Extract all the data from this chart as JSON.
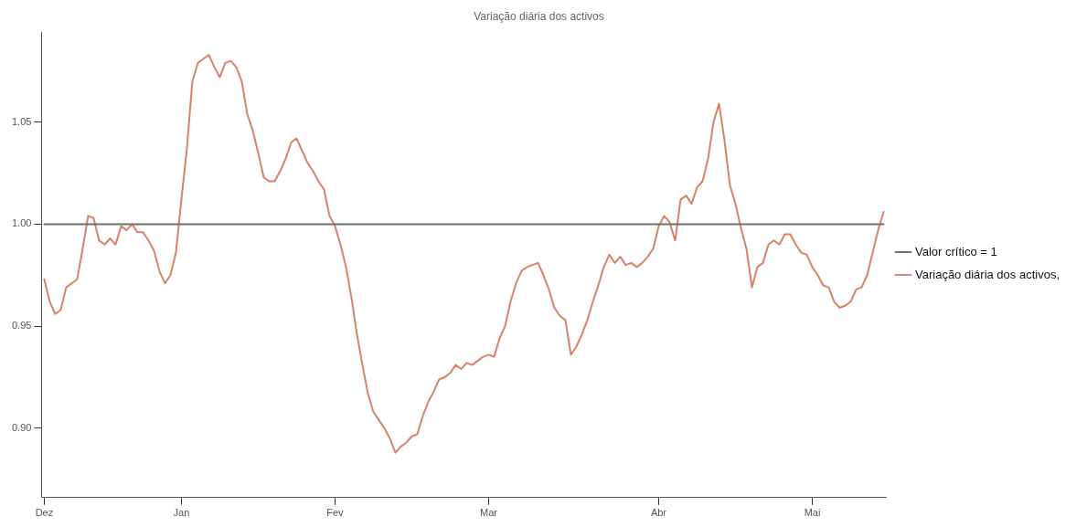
{
  "chart_data": {
    "type": "line",
    "title": "Variação diária dos activos",
    "categories": [
      "Dez",
      null,
      null,
      null,
      null,
      null,
      null,
      null,
      null,
      null,
      null,
      null,
      null,
      null,
      null,
      null,
      null,
      null,
      null,
      null,
      null,
      null,
      null,
      null,
      null,
      "Jan",
      null,
      null,
      null,
      null,
      null,
      null,
      null,
      null,
      null,
      null,
      null,
      null,
      null,
      null,
      null,
      null,
      null,
      null,
      null,
      null,
      null,
      null,
      null,
      null,
      null,
      null,
      null,
      "Fev",
      null,
      null,
      null,
      null,
      null,
      null,
      null,
      null,
      null,
      null,
      null,
      null,
      null,
      null,
      null,
      null,
      null,
      null,
      null,
      null,
      null,
      null,
      null,
      null,
      null,
      null,
      null,
      "Mar",
      null,
      null,
      null,
      null,
      null,
      null,
      null,
      null,
      null,
      null,
      null,
      null,
      null,
      null,
      null,
      null,
      null,
      null,
      null,
      null,
      null,
      null,
      null,
      null,
      null,
      null,
      null,
      null,
      null,
      null,
      "Abr",
      null,
      null,
      null,
      null,
      null,
      null,
      null,
      null,
      null,
      null,
      null,
      null,
      null,
      null,
      null,
      null,
      null,
      null,
      null,
      null,
      null,
      null,
      null,
      null,
      null,
      null,
      null,
      "Mai",
      null,
      null,
      null,
      null,
      null,
      null,
      null,
      null,
      null,
      null,
      null,
      null,
      null
    ],
    "ylim": [
      0.866,
      1.094
    ],
    "yticks": [
      {
        "value": 0.9,
        "label": "0.90"
      },
      {
        "value": 0.95,
        "label": "0.95"
      },
      {
        "value": 1,
        "label": "1.00"
      },
      {
        "value": 1.05,
        "label": "1.05"
      }
    ],
    "grid": false,
    "legend": "right",
    "marker": "none",
    "line_style": "solid",
    "series": [
      {
        "name": "Valor crítico = 1",
        "color": "#6e6e6e",
        "values": [
          1,
          1,
          1,
          1,
          1,
          1,
          1,
          1,
          1,
          1,
          1,
          1,
          1,
          1,
          1,
          1,
          1,
          1,
          1,
          1,
          1,
          1,
          1,
          1,
          1,
          1,
          1,
          1,
          1,
          1,
          1,
          1,
          1,
          1,
          1,
          1,
          1,
          1,
          1,
          1,
          1,
          1,
          1,
          1,
          1,
          1,
          1,
          1,
          1,
          1,
          1,
          1,
          1,
          1,
          1,
          1,
          1,
          1,
          1,
          1,
          1,
          1,
          1,
          1,
          1,
          1,
          1,
          1,
          1,
          1,
          1,
          1,
          1,
          1,
          1,
          1,
          1,
          1,
          1,
          1,
          1,
          1,
          1,
          1,
          1,
          1,
          1,
          1,
          1,
          1,
          1,
          1,
          1,
          1,
          1,
          1,
          1,
          1,
          1,
          1,
          1,
          1,
          1,
          1,
          1,
          1,
          1,
          1,
          1,
          1,
          1,
          1,
          1,
          1,
          1,
          1,
          1,
          1,
          1,
          1,
          1,
          1,
          1,
          1,
          1,
          1,
          1,
          1,
          1,
          1,
          1,
          1,
          1,
          1,
          1,
          1,
          1,
          1,
          1,
          1,
          1,
          1,
          1,
          1,
          1,
          1,
          1,
          1,
          1,
          1,
          1,
          1,
          1,
          1
        ]
      },
      {
        "name": "Variação diária dos activos,",
        "color": "#d9826a",
        "values": [
          0.973,
          0.962,
          0.956,
          0.958,
          0.969,
          0.971,
          0.973,
          0.988,
          1.004,
          1.003,
          0.992,
          0.99,
          0.993,
          0.99,
          0.999,
          0.997,
          1.0,
          0.996,
          0.996,
          0.992,
          0.987,
          0.977,
          0.971,
          0.975,
          0.986,
          1.012,
          1.037,
          1.07,
          1.079,
          1.081,
          1.083,
          1.077,
          1.072,
          1.079,
          1.08,
          1.077,
          1.07,
          1.054,
          1.046,
          1.035,
          1.023,
          1.021,
          1.021,
          1.026,
          1.032,
          1.04,
          1.042,
          1.036,
          1.03,
          1.026,
          1.021,
          1.017,
          1.004,
          0.999,
          0.99,
          0.979,
          0.964,
          0.946,
          0.931,
          0.917,
          0.908,
          0.904,
          0.9,
          0.895,
          0.888,
          0.891,
          0.893,
          0.896,
          0.897,
          0.906,
          0.913,
          0.918,
          0.924,
          0.925,
          0.927,
          0.931,
          0.929,
          0.932,
          0.931,
          0.933,
          0.935,
          0.936,
          0.935,
          0.944,
          0.95,
          0.962,
          0.971,
          0.977,
          0.979,
          0.98,
          0.981,
          0.975,
          0.968,
          0.959,
          0.955,
          0.953,
          0.936,
          0.94,
          0.946,
          0.953,
          0.962,
          0.97,
          0.979,
          0.985,
          0.981,
          0.984,
          0.98,
          0.981,
          0.979,
          0.981,
          0.984,
          0.988,
          0.999,
          1.004,
          1.001,
          0.992,
          1.012,
          1.014,
          1.01,
          1.018,
          1.021,
          1.032,
          1.05,
          1.059,
          1.041,
          1.019,
          1.01,
          0.998,
          0.988,
          0.969,
          0.979,
          0.981,
          0.99,
          0.992,
          0.99,
          0.995,
          0.995,
          0.99,
          0.986,
          0.985,
          0.979,
          0.975,
          0.97,
          0.969,
          0.962,
          0.959,
          0.96,
          0.962,
          0.968,
          0.969,
          0.975,
          0.986,
          0.997,
          1.006
        ]
      }
    ]
  }
}
